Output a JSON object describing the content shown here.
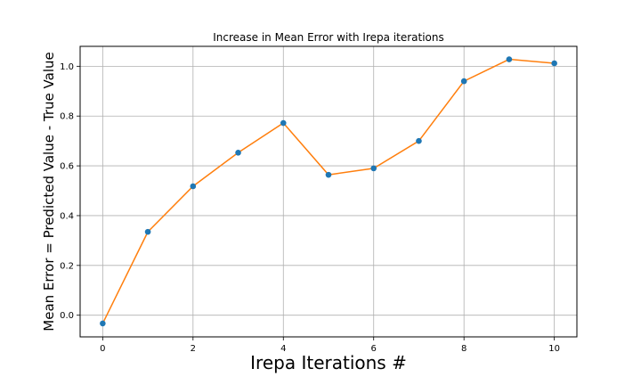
{
  "chart_data": {
    "type": "line",
    "title": "Increase in Mean Error with Irepa iterations",
    "xlabel": "Irepa Iterations #",
    "ylabel": "Mean Error = Predicted Value - True Value",
    "x": [
      0,
      1,
      2,
      3,
      4,
      5,
      6,
      7,
      8,
      9,
      10
    ],
    "series": [
      {
        "values": [
          -0.033,
          0.335,
          0.518,
          0.653,
          0.772,
          0.564,
          0.59,
          0.7,
          0.94,
          1.028,
          1.012
        ],
        "line_color": "#ff7f0e",
        "marker_color": "#1f77b4"
      }
    ],
    "xlim": [
      -0.5,
      10.5
    ],
    "ylim": [
      -0.087,
      1.08
    ],
    "xticks": [
      0,
      2,
      4,
      6,
      8,
      10
    ],
    "yticks": [
      0.0,
      0.2,
      0.4,
      0.6,
      0.8,
      1.0
    ],
    "xtick_labels": [
      "0",
      "2",
      "4",
      "6",
      "8",
      "10"
    ],
    "ytick_labels": [
      "0.0",
      "0.2",
      "0.4",
      "0.6",
      "0.8",
      "1.0"
    ],
    "grid": true,
    "legend": "none"
  }
}
